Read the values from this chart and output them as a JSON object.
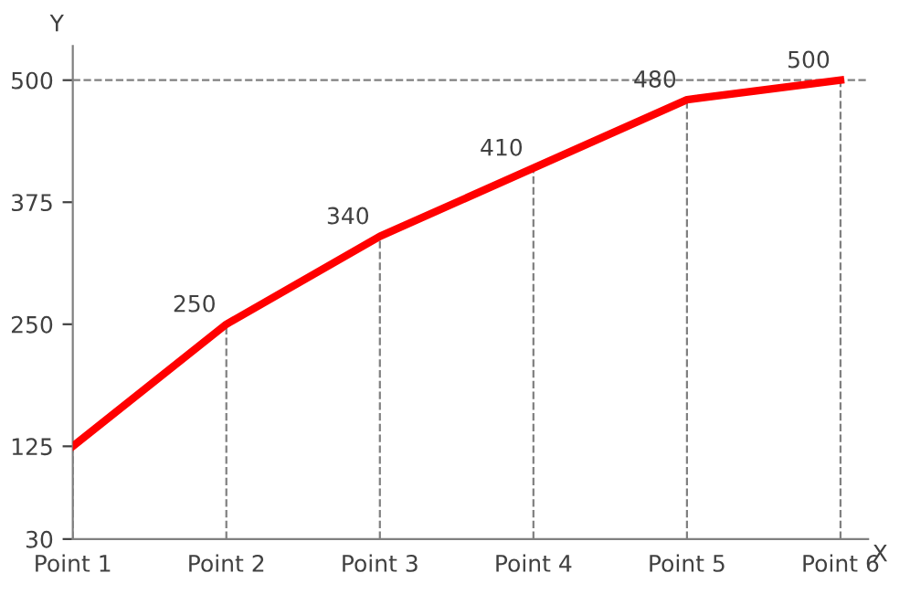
{
  "chart_data": {
    "type": "line",
    "xlabel": "X",
    "ylabel": "Y",
    "categories": [
      "Point 1",
      "Point 2",
      "Point 3",
      "Point 4",
      "Point 5",
      "Point 6"
    ],
    "series": [
      {
        "color": "#ff0000",
        "values": [
          125,
          250,
          340,
          410,
          480,
          500
        ],
        "value_labels": [
          null,
          "250",
          "340",
          "410",
          "480",
          "500"
        ]
      }
    ],
    "ylim": [
      30,
      535
    ],
    "yticks": [
      30,
      125,
      250,
      375,
      500
    ],
    "ref_lines": [
      {
        "axis": "y",
        "value": 500,
        "color": "#808080",
        "line_style": "dashed"
      }
    ],
    "marker": "none",
    "line_style": "solid",
    "grid": "x",
    "legend": false
  }
}
